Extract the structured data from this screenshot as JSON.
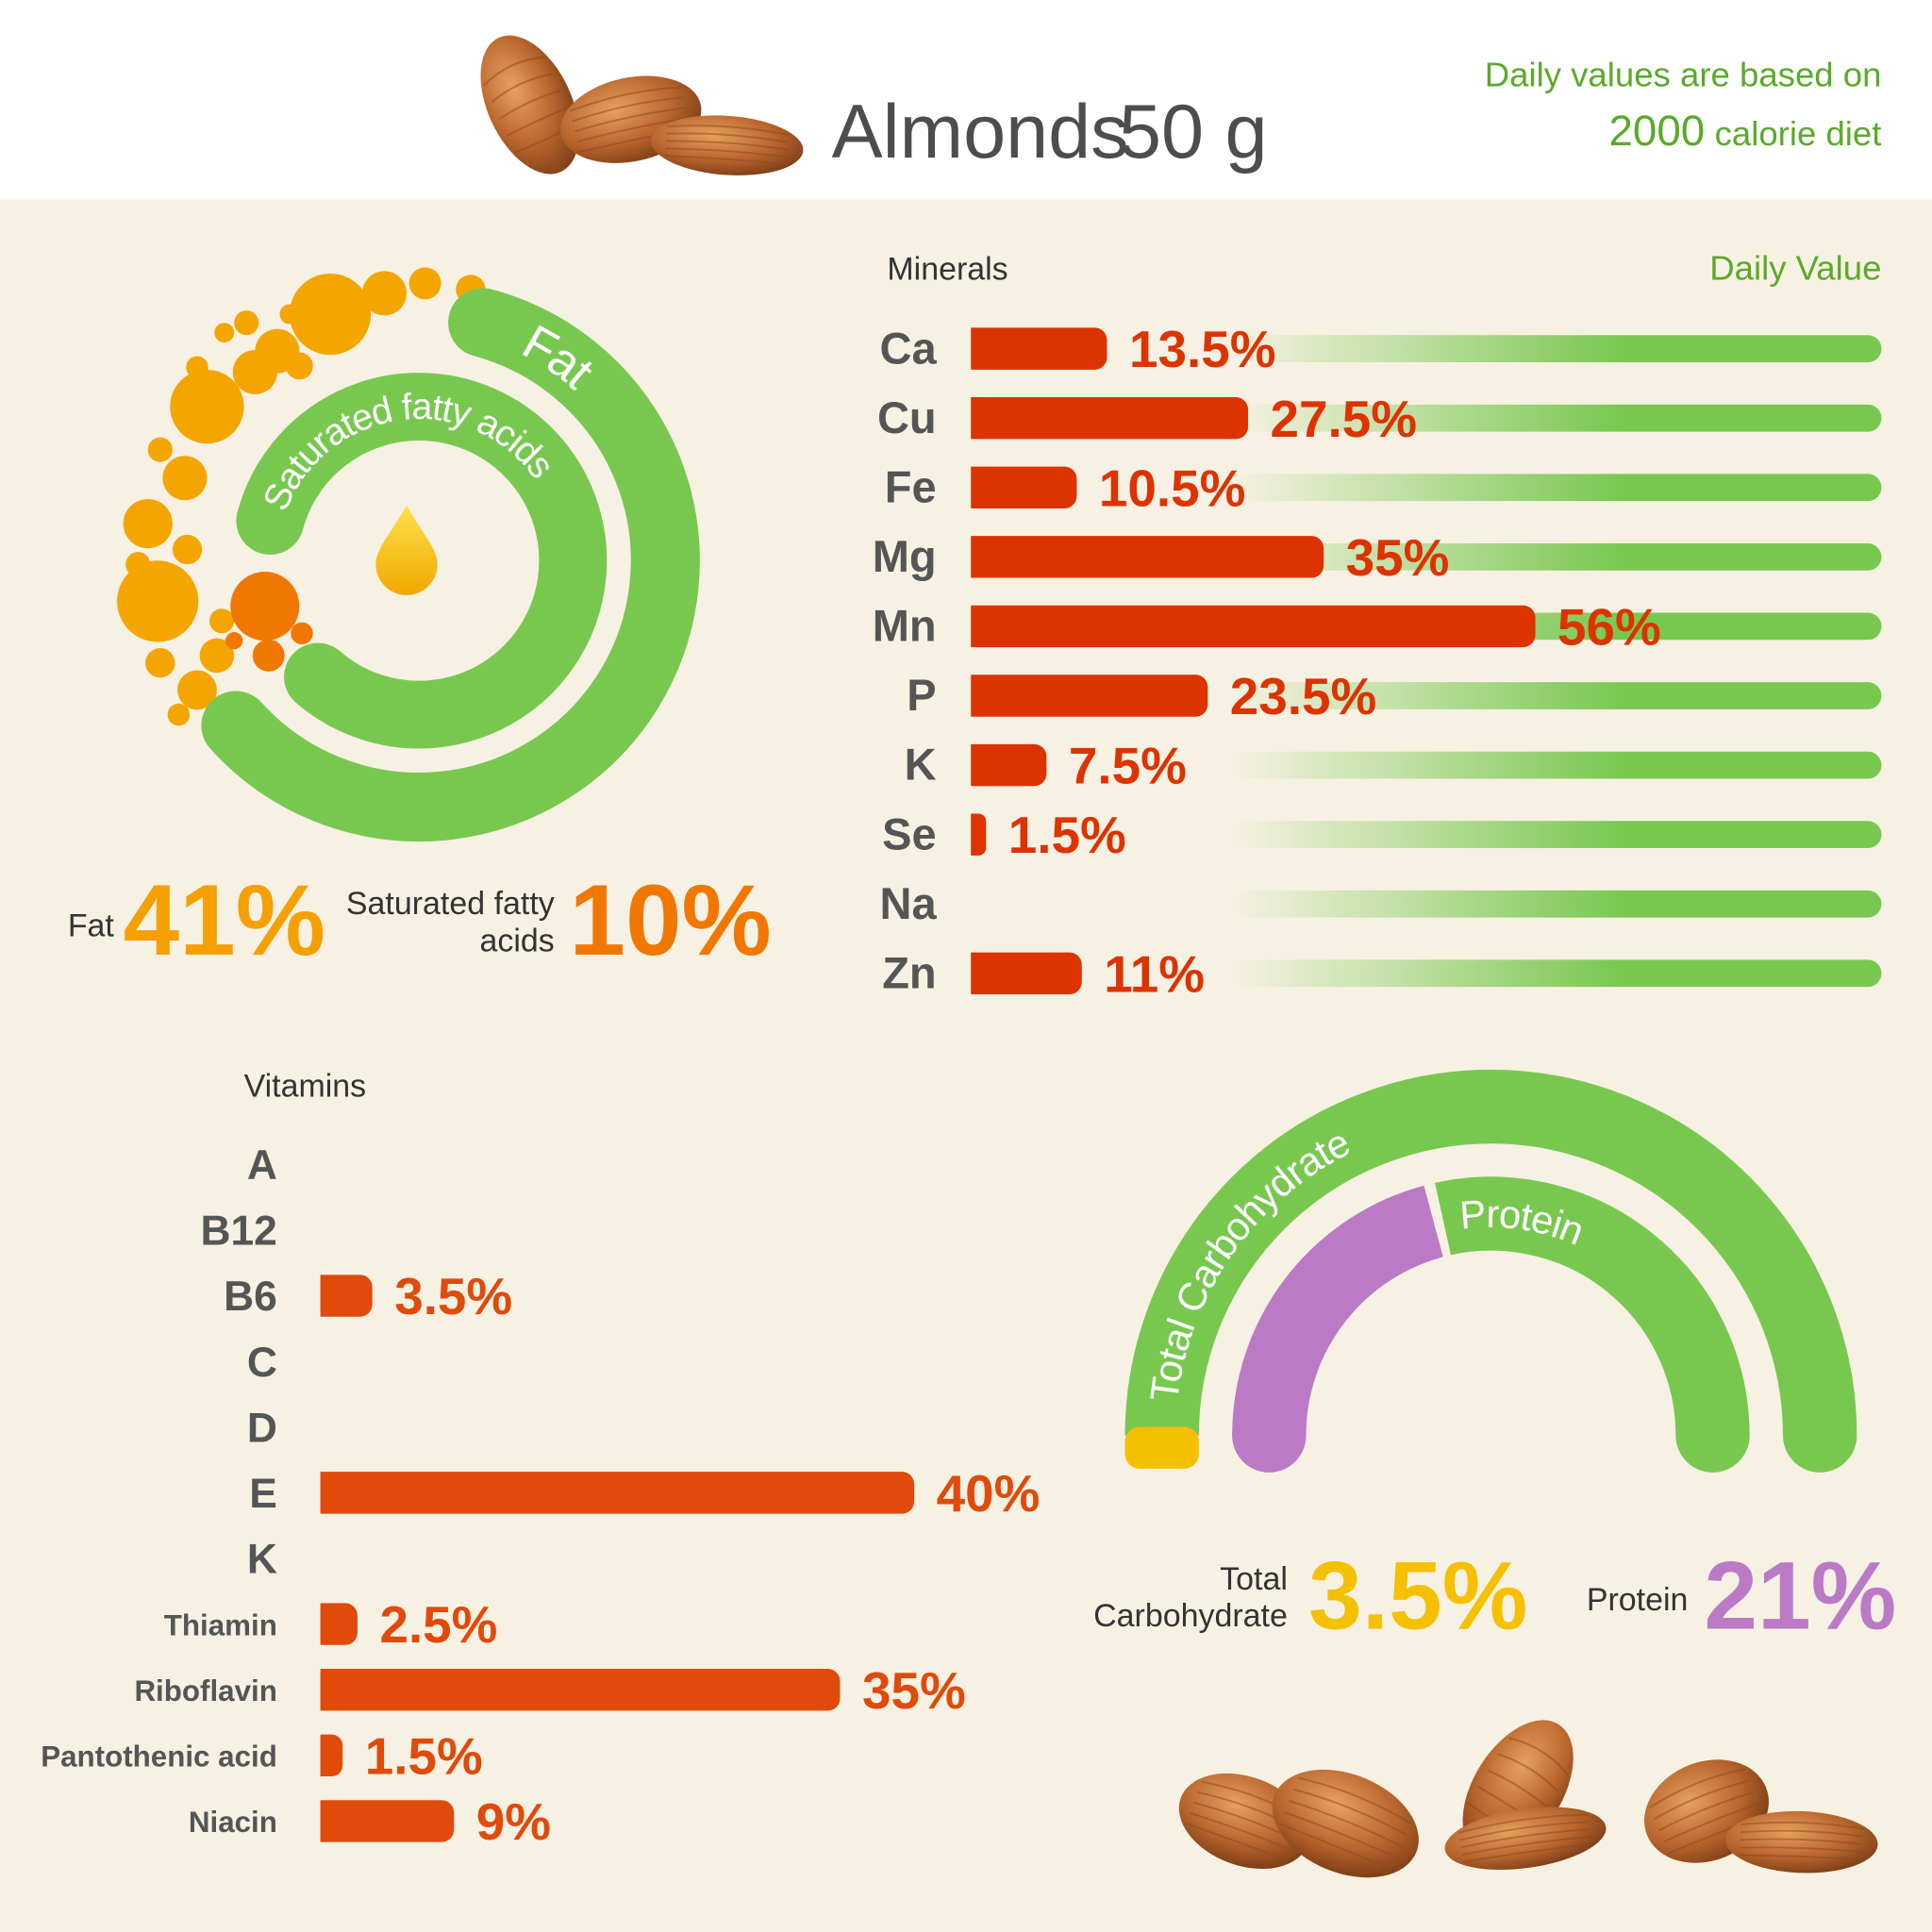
{
  "header": {
    "title": "Almonds",
    "serving": "50 g",
    "note_line1": "Daily values are based on",
    "note_calories": "2000",
    "note_line2": "calorie diet"
  },
  "chart_data": [
    {
      "type": "ring",
      "categories": [
        "Fat",
        "Saturated fatty acids"
      ],
      "values": [
        41,
        10
      ],
      "value_labels": [
        "41%",
        "10%"
      ],
      "color": "#78c850",
      "label_colors": [
        "#f5a000",
        "#f07800"
      ]
    },
    {
      "type": "bar",
      "title": "Minerals",
      "axis_label": "Daily Value",
      "categories": [
        "Ca",
        "Cu",
        "Fe",
        "Mg",
        "Mn",
        "P",
        "K",
        "Se",
        "Na",
        "Zn"
      ],
      "values": [
        13.5,
        27.5,
        10.5,
        35,
        56,
        23.5,
        7.5,
        1.5,
        null,
        11
      ],
      "value_labels": [
        "13.5%",
        "27.5%",
        "10.5%",
        "35%",
        "56%",
        "23.5%",
        "7.5%",
        "1.5%",
        null,
        "11%"
      ],
      "color": "#dd3300",
      "track_color": "#78c850",
      "xlim": [
        0,
        100
      ]
    },
    {
      "type": "bar",
      "title": "Vitamins",
      "categories": [
        "A",
        "B12",
        "B6",
        "C",
        "D",
        "E",
        "K",
        "Thiamin",
        "Riboflavin",
        "Pantothenic acid",
        "Niacin"
      ],
      "values": [
        null,
        null,
        3.5,
        null,
        null,
        40,
        null,
        2.5,
        35,
        1.5,
        9
      ],
      "value_labels": [
        null,
        null,
        "3.5%",
        null,
        null,
        "40%",
        null,
        "2.5%",
        "35%",
        "1.5%",
        "9%"
      ],
      "color": "#e04a0a",
      "xlim": [
        0,
        100
      ]
    },
    {
      "type": "arc",
      "categories": [
        "Total Carbohydrate",
        "Protein"
      ],
      "values": [
        3.5,
        21
      ],
      "value_labels": [
        "3.5%",
        "21%"
      ],
      "color": "#78c850",
      "colors": [
        "#f5c000",
        "#bb7ac6"
      ],
      "label_colors": [
        "#f5c000",
        "#bb7ac6"
      ]
    }
  ]
}
